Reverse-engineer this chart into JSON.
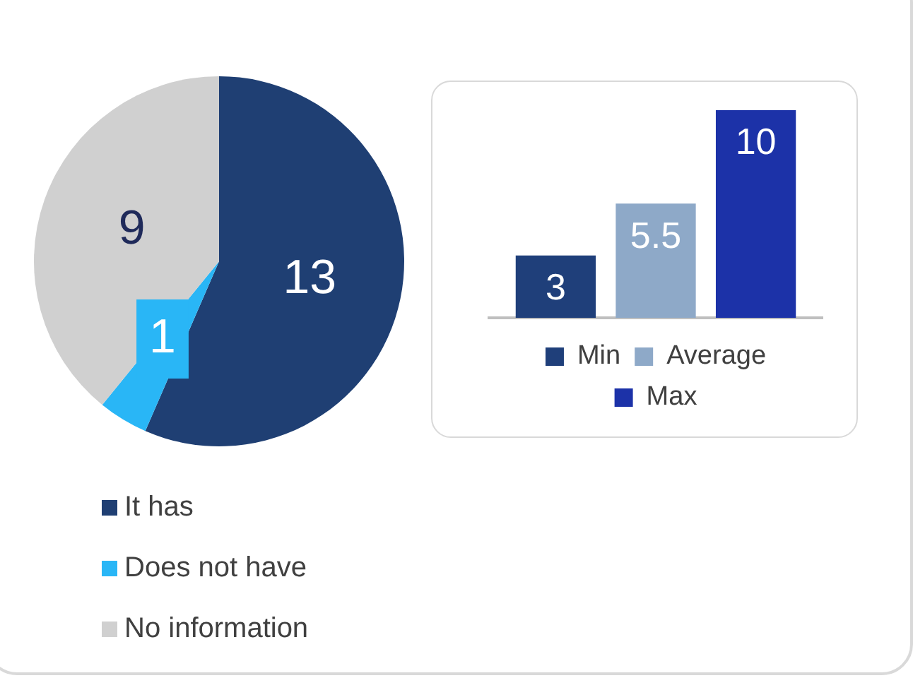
{
  "chart_data": [
    {
      "type": "pie",
      "categories": [
        "It has",
        "Does not have",
        "No information"
      ],
      "values": [
        13,
        1,
        9
      ],
      "colors": [
        "#1f3f73",
        "#29b6f6",
        "#d0d0d0"
      ],
      "data_labels": true,
      "legend": "bottom left"
    },
    {
      "type": "bar",
      "categories": [
        null
      ],
      "series": [
        {
          "name": "Min",
          "color": "#1f3f7a",
          "values": [
            3
          ]
        },
        {
          "name": "Average",
          "color": "#8ea9c8",
          "values": [
            5.5
          ]
        },
        {
          "name": "Max",
          "color": "#1c32a8",
          "values": [
            10
          ]
        }
      ],
      "data_labels": true,
      "legend": "bottom"
    }
  ]
}
